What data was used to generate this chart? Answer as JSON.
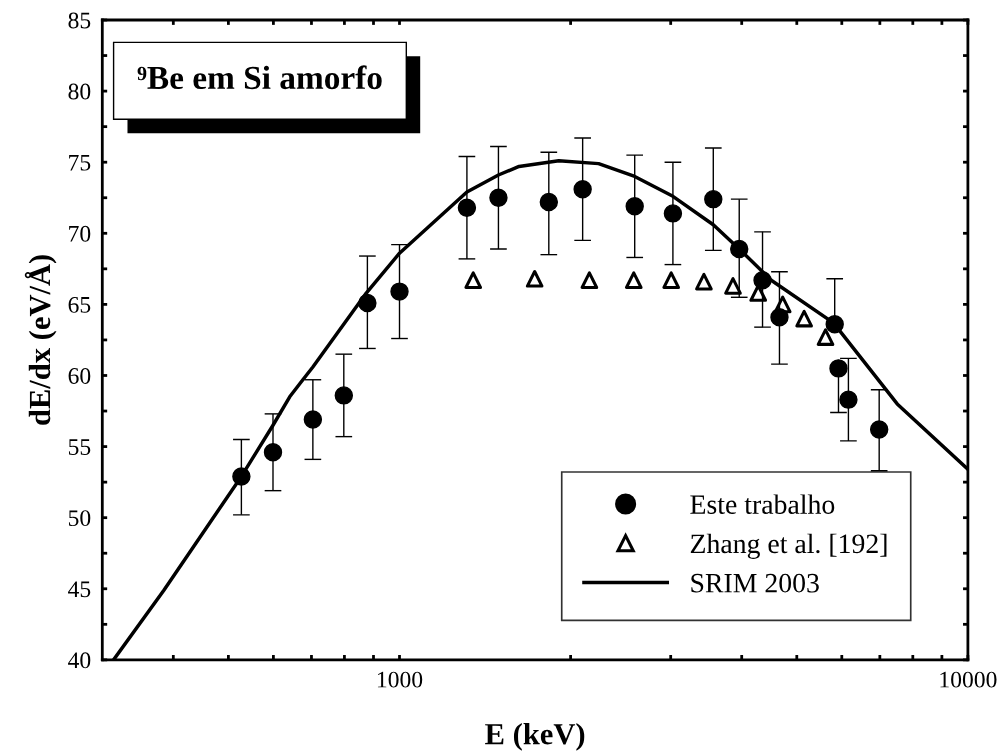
{
  "chart_data": {
    "type": "scatter",
    "xlabel": "E (keV)",
    "ylabel": "dE/dx (eV/Å)",
    "log": "x",
    "xlim": [
      300,
      10000
    ],
    "ylim": [
      40,
      85
    ],
    "xticks": [
      {
        "value": 400,
        "label": null
      },
      {
        "value": 500,
        "label": null
      },
      {
        "value": 600,
        "label": null
      },
      {
        "value": 700,
        "label": null
      },
      {
        "value": 800,
        "label": null
      },
      {
        "value": 900,
        "label": null
      },
      1000,
      {
        "value": 2000,
        "label": null
      },
      {
        "value": 3000,
        "label": null
      },
      {
        "value": 4000,
        "label": null
      },
      {
        "value": 5000,
        "label": null
      },
      {
        "value": 6000,
        "label": null
      },
      {
        "value": 7000,
        "label": null
      },
      {
        "value": 8000,
        "label": null
      },
      {
        "value": 9000,
        "label": null
      },
      10000
    ],
    "yticks": [
      40,
      {
        "value": 42.5,
        "label": null
      },
      45,
      {
        "value": 47.5,
        "label": null
      },
      50,
      {
        "value": 52.5,
        "label": null
      },
      55,
      {
        "value": 57.5,
        "label": null
      },
      60,
      {
        "value": 62.5,
        "label": null
      },
      65,
      {
        "value": 67.5,
        "label": null
      },
      70,
      {
        "value": 72.5,
        "label": null
      },
      75,
      {
        "value": 77.5,
        "label": null
      },
      80,
      {
        "value": 82.5,
        "label": null
      },
      85
    ],
    "grid": false,
    "legend": "bottom right",
    "annotations": [
      "⁹Be em Si amorfo"
    ],
    "series": [
      {
        "name": "Este trabalho",
        "marker": "circle",
        "color": "#000000",
        "x": [
          527,
          599,
          704,
          798,
          878,
          1000,
          1314,
          1493,
          1831,
          2100,
          2593,
          3027,
          3565,
          3960,
          4352,
          4661,
          5830,
          5920,
          6163,
          6981
        ],
        "values": [
          52.9,
          54.6,
          56.9,
          58.6,
          65.1,
          65.9,
          71.8,
          72.5,
          72.2,
          73.1,
          71.9,
          71.4,
          72.4,
          68.9,
          66.7,
          64.1,
          63.6,
          60.5,
          58.3,
          56.2
        ],
        "errors": [
          [
            50.2,
            55.5
          ],
          [
            51.9,
            57.3
          ],
          [
            54.1,
            59.7
          ],
          [
            55.7,
            61.5
          ],
          [
            61.9,
            68.4
          ],
          [
            62.6,
            69.2
          ],
          [
            68.2,
            75.4
          ],
          [
            68.9,
            76.1
          ],
          [
            68.5,
            75.7
          ],
          [
            69.5,
            76.7
          ],
          [
            68.3,
            75.5
          ],
          [
            67.8,
            75.0
          ],
          [
            68.8,
            76.0
          ],
          [
            65.5,
            72.4
          ],
          [
            63.4,
            70.1
          ],
          [
            60.8,
            67.3
          ],
          [
            63.6,
            66.8
          ],
          [
            57.4,
            60.5
          ],
          [
            55.4,
            61.2
          ],
          [
            53.3,
            59.0
          ]
        ]
      },
      {
        "name": "Zhang et al. [192]",
        "marker": "triangle",
        "color": "#000000",
        "x": [
          1348,
          1729,
          2158,
          2583,
          3006,
          3432,
          3861,
          4277,
          4722,
          5151,
          5617
        ],
        "values": [
          66.7,
          66.8,
          66.7,
          66.7,
          66.7,
          66.6,
          66.3,
          65.8,
          65.0,
          64.0,
          62.7
        ]
      },
      {
        "name": "SRIM 2003",
        "type": "line",
        "marker": "none",
        "line_style": "solid",
        "color": "#000000",
        "x": [
          314,
          385,
          527,
          599,
          641,
          676,
          704,
          874,
          1000,
          1314,
          1493,
          1623,
          1906,
          2240,
          2593,
          3027,
          3565,
          3960,
          4508,
          5801,
          7510,
          10000
        ],
        "values": [
          40,
          44.9,
          52.9,
          56.5,
          58.5,
          59.7,
          60.6,
          65.8,
          68.6,
          72.9,
          74.1,
          74.7,
          75.1,
          74.9,
          74.0,
          72.6,
          70.6,
          68.9,
          66.7,
          63.7,
          58.0,
          53.4
        ]
      }
    ]
  }
}
